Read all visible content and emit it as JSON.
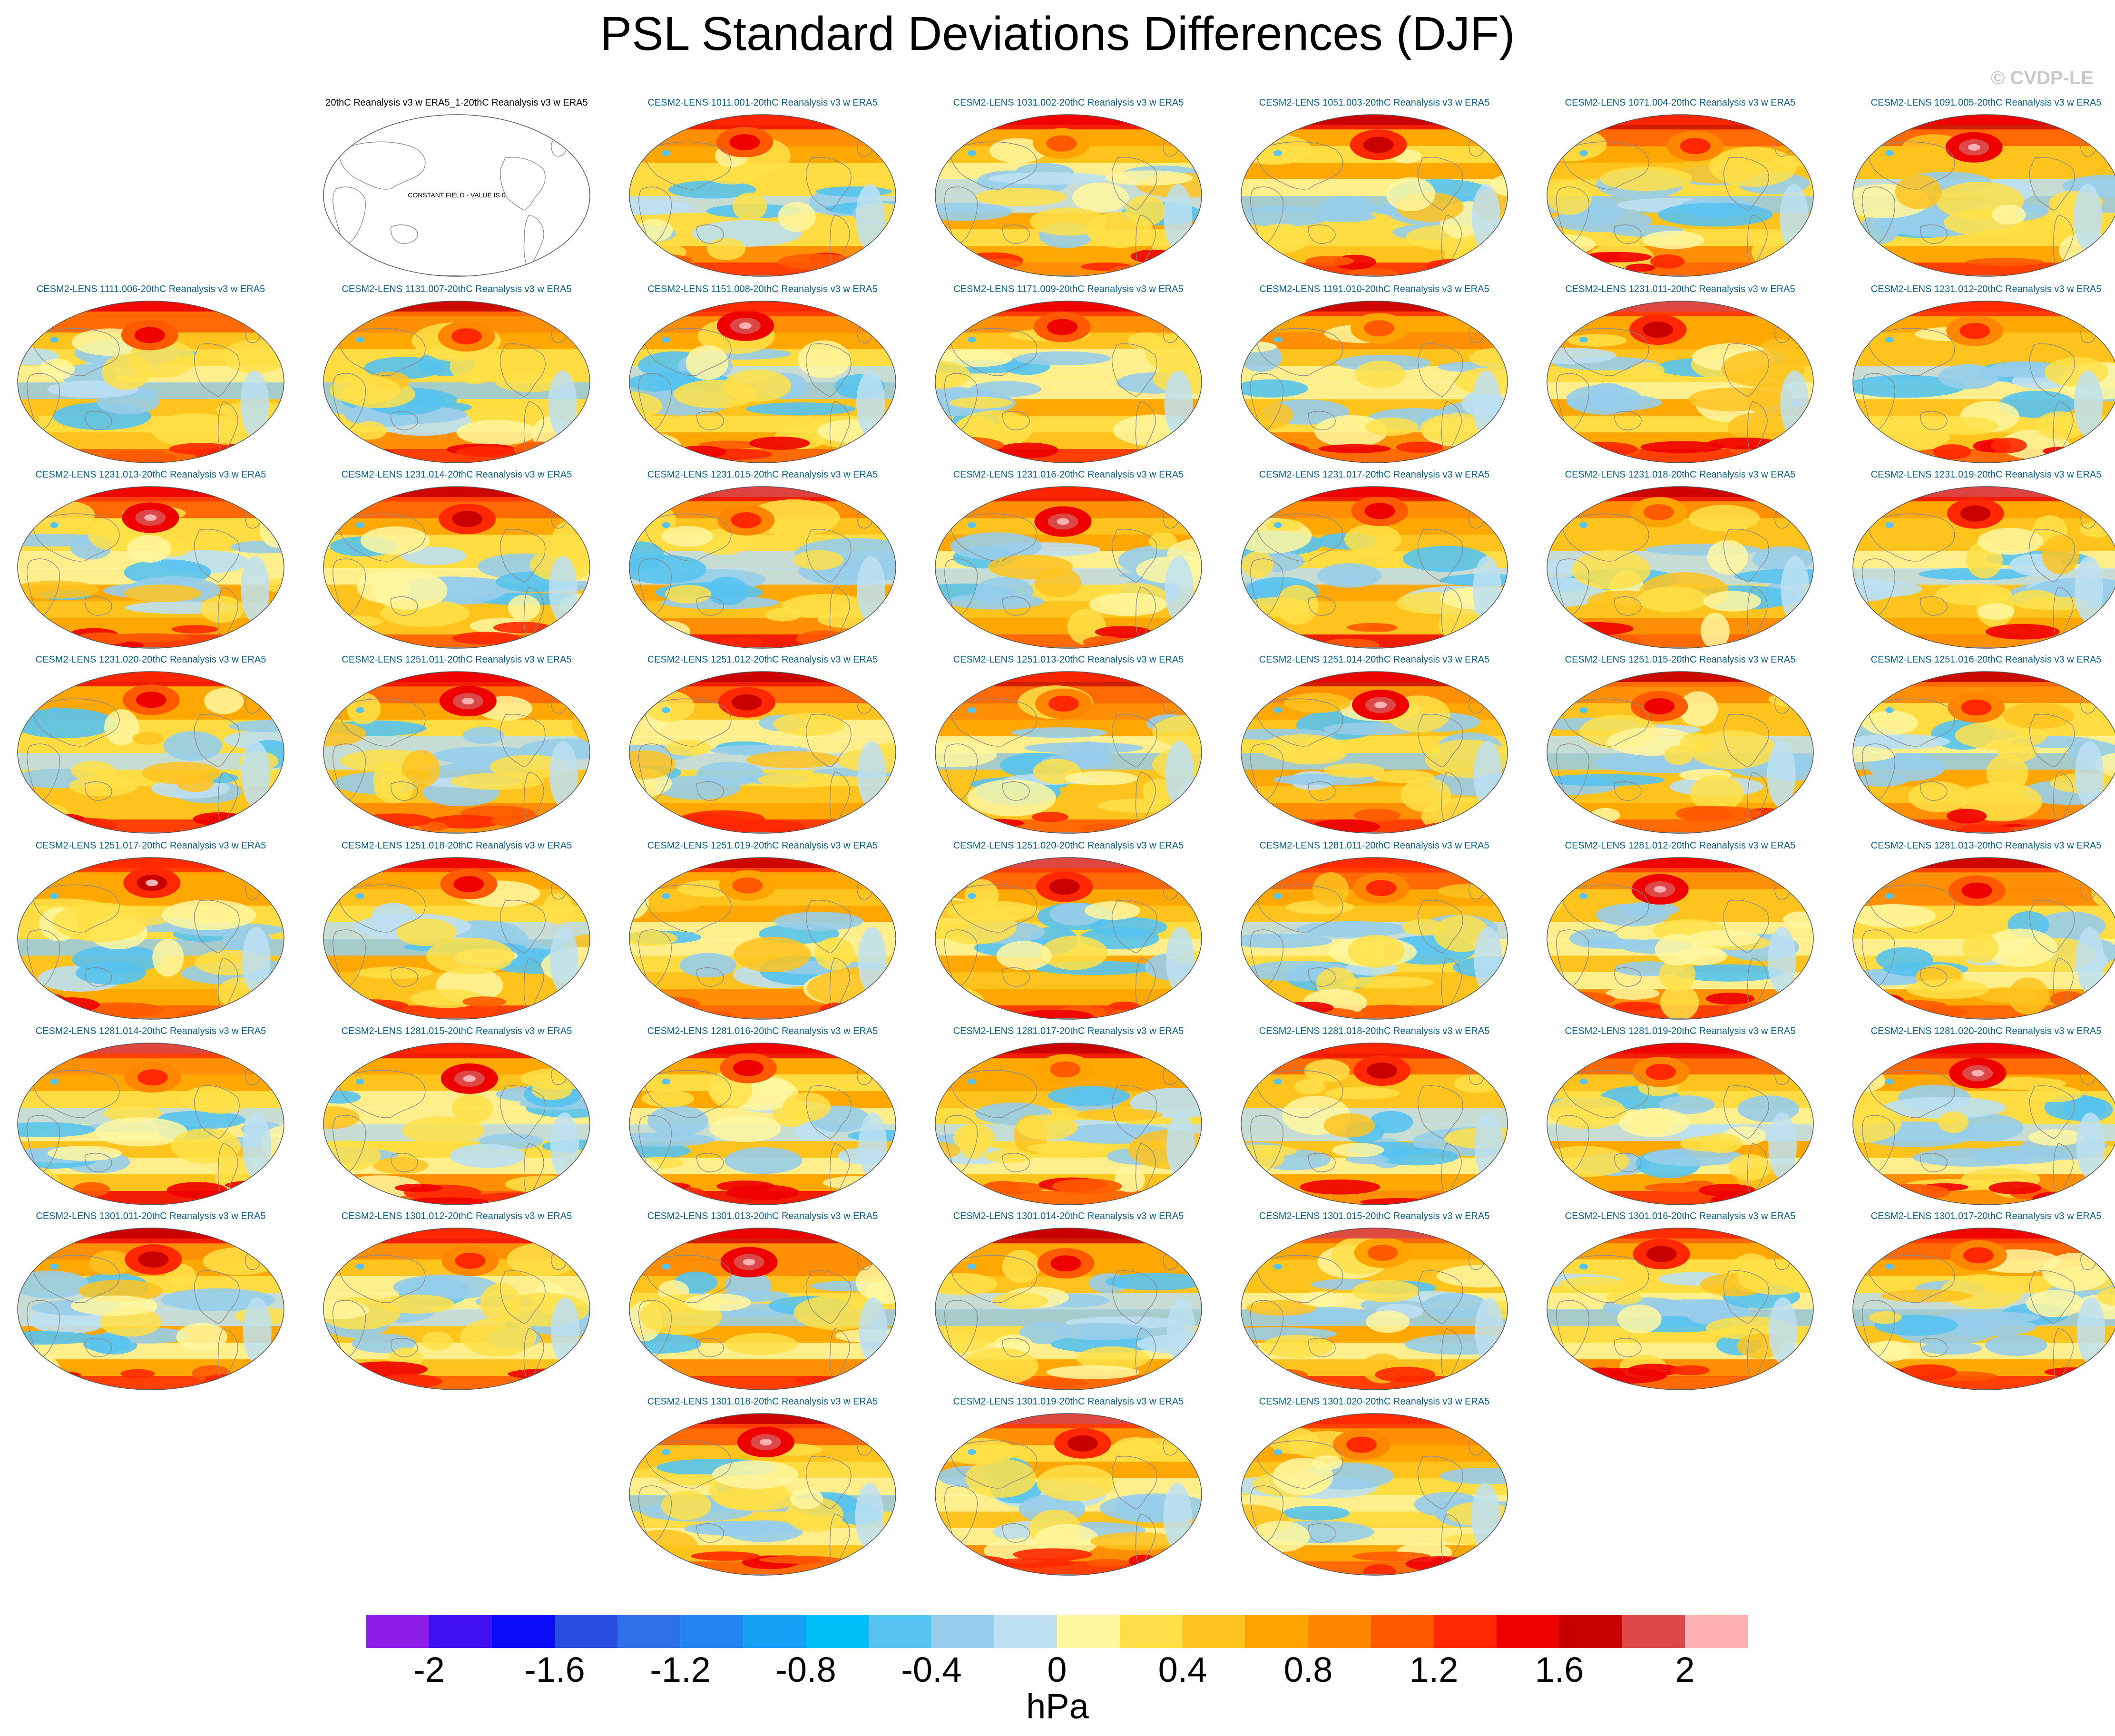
{
  "title": "PSL Standard Deviations Differences (DJF)",
  "watermark": "© CVDP-LE",
  "observation_panel": {
    "label": "20thC Reanalysis v3 w ERA5_1-20thC Reanalysis v3 w ERA5",
    "annotation": "CONSTANT FIELD - VALUE IS 0"
  },
  "panels": [
    "CESM2-LENS 1011.001-20thC Reanalysis v3 w ERA5",
    "CESM2-LENS 1031.002-20thC Reanalysis v3 w ERA5",
    "CESM2-LENS 1051.003-20thC Reanalysis v3 w ERA5",
    "CESM2-LENS 1071.004-20thC Reanalysis v3 w ERA5",
    "CESM2-LENS 1091.005-20thC Reanalysis v3 w ERA5",
    "CESM2-LENS 1111.006-20thC Reanalysis v3 w ERA5",
    "CESM2-LENS 1131.007-20thC Reanalysis v3 w ERA5",
    "CESM2-LENS 1151.008-20thC Reanalysis v3 w ERA5",
    "CESM2-LENS 1171.009-20thC Reanalysis v3 w ERA5",
    "CESM2-LENS 1191.010-20thC Reanalysis v3 w ERA5",
    "CESM2-LENS 1231.011-20thC Reanalysis v3 w ERA5",
    "CESM2-LENS 1231.012-20thC Reanalysis v3 w ERA5",
    "CESM2-LENS 1231.013-20thC Reanalysis v3 w ERA5",
    "CESM2-LENS 1231.014-20thC Reanalysis v3 w ERA5",
    "CESM2-LENS 1231.015-20thC Reanalysis v3 w ERA5",
    "CESM2-LENS 1231.016-20thC Reanalysis v3 w ERA5",
    "CESM2-LENS 1231.017-20thC Reanalysis v3 w ERA5",
    "CESM2-LENS 1231.018-20thC Reanalysis v3 w ERA5",
    "CESM2-LENS 1231.019-20thC Reanalysis v3 w ERA5",
    "CESM2-LENS 1231.020-20thC Reanalysis v3 w ERA5",
    "CESM2-LENS 1251.011-20thC Reanalysis v3 w ERA5",
    "CESM2-LENS 1251.012-20thC Reanalysis v3 w ERA5",
    "CESM2-LENS 1251.013-20thC Reanalysis v3 w ERA5",
    "CESM2-LENS 1251.014-20thC Reanalysis v3 w ERA5",
    "CESM2-LENS 1251.015-20thC Reanalysis v3 w ERA5",
    "CESM2-LENS 1251.016-20thC Reanalysis v3 w ERA5",
    "CESM2-LENS 1251.017-20thC Reanalysis v3 w ERA5",
    "CESM2-LENS 1251.018-20thC Reanalysis v3 w ERA5",
    "CESM2-LENS 1251.019-20thC Reanalysis v3 w ERA5",
    "CESM2-LENS 1251.020-20thC Reanalysis v3 w ERA5",
    "CESM2-LENS 1281.011-20thC Reanalysis v3 w ERA5",
    "CESM2-LENS 1281.012-20thC Reanalysis v3 w ERA5",
    "CESM2-LENS 1281.013-20thC Reanalysis v3 w ERA5",
    "CESM2-LENS 1281.014-20thC Reanalysis v3 w ERA5",
    "CESM2-LENS 1281.015-20thC Reanalysis v3 w ERA5",
    "CESM2-LENS 1281.016-20thC Reanalysis v3 w ERA5",
    "CESM2-LENS 1281.017-20thC Reanalysis v3 w ERA5",
    "CESM2-LENS 1281.018-20thC Reanalysis v3 w ERA5",
    "CESM2-LENS 1281.019-20thC Reanalysis v3 w ERA5",
    "CESM2-LENS 1281.020-20thC Reanalysis v3 w ERA5",
    "CESM2-LENS 1301.011-20thC Reanalysis v3 w ERA5",
    "CESM2-LENS 1301.012-20thC Reanalysis v3 w ERA5",
    "CESM2-LENS 1301.013-20thC Reanalysis v3 w ERA5",
    "CESM2-LENS 1301.014-20thC Reanalysis v3 w ERA5",
    "CESM2-LENS 1301.015-20thC Reanalysis v3 w ERA5",
    "CESM2-LENS 1301.016-20thC Reanalysis v3 w ERA5",
    "CESM2-LENS 1301.017-20thC Reanalysis v3 w ERA5",
    "CESM2-LENS 1301.018-20thC Reanalysis v3 w ERA5",
    "CESM2-LENS 1301.019-20thC Reanalysis v3 w ERA5",
    "CESM2-LENS 1301.020-20thC Reanalysis v3 w ERA5"
  ],
  "colorbar": {
    "colors": [
      "#8d1ee8",
      "#4010f0",
      "#0a0af5",
      "#2a4be0",
      "#3070e6",
      "#2585f0",
      "#14a0f5",
      "#00bff8",
      "#56c3f0",
      "#97cdea",
      "#bde0f2",
      "#fff7a0",
      "#ffe048",
      "#ffc31e",
      "#ffa300",
      "#ff8600",
      "#ff5a00",
      "#ff2800",
      "#ee0000",
      "#c80000",
      "#dc4848",
      "#ffb0b0"
    ],
    "ticks": [
      "-2",
      "-1.6",
      "-1.2",
      "-0.8",
      "-0.4",
      "0",
      "0.4",
      "0.8",
      "1.2",
      "1.6",
      "2"
    ],
    "units": "hPa"
  },
  "chart_data": {
    "type": "heatmap",
    "title": "PSL Standard Deviations Differences (DJF)",
    "projection": "Robinson, Pacific-centred global maps",
    "panel_count": 51,
    "colorbar_units": "hPa",
    "colorbar_range": [
      -2.2,
      2.2
    ],
    "level_step": 0.2,
    "tick_labels": [
      "-2",
      "-1.6",
      "-1.2",
      "-0.8",
      "-0.4",
      "0",
      "0.4",
      "0.8",
      "1.2",
      "1.6",
      "2"
    ],
    "observation_constant_value": 0
  }
}
